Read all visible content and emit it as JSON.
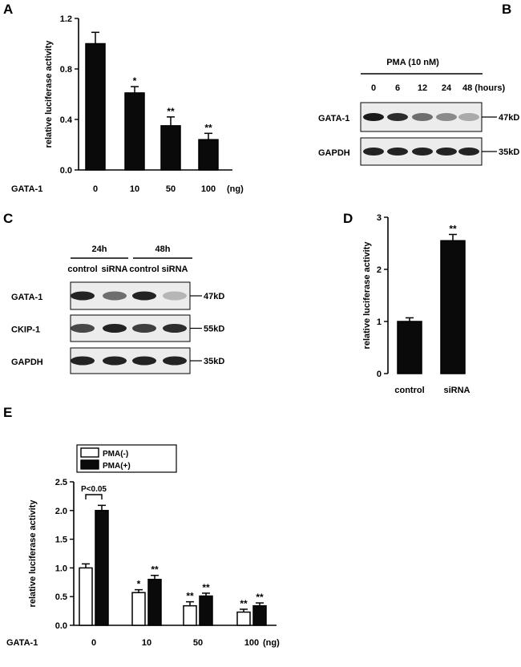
{
  "panels": {
    "A": "A",
    "B": "B",
    "C": "C",
    "D": "D",
    "E": "E"
  },
  "colors": {
    "bar_dark": "#0a0a0a",
    "bar_light": "#ffffff",
    "axis": "#000000",
    "band": "#1a1a1a"
  },
  "chart_data": [
    {
      "panel": "A",
      "type": "bar",
      "ylabel": "relative  luciferase activity",
      "xlabel_prefix": "GATA-1",
      "xunit": "(ng)",
      "categories": [
        "0",
        "10",
        "50",
        "100"
      ],
      "values": [
        1.0,
        0.61,
        0.35,
        0.24
      ],
      "errors": [
        0.09,
        0.05,
        0.07,
        0.05
      ],
      "significance": [
        "",
        "*",
        "**",
        "**"
      ],
      "ylim": [
        0,
        1.2
      ],
      "yticks": [
        "0.0",
        "0.4",
        "0.8",
        "1.2"
      ]
    },
    {
      "panel": "D",
      "type": "bar",
      "ylabel": "relative  luciferase activity",
      "categories": [
        "control",
        "siRNA"
      ],
      "values": [
        1.0,
        2.55
      ],
      "errors": [
        0.07,
        0.12
      ],
      "significance": [
        "",
        "**"
      ],
      "ylim": [
        0,
        3
      ],
      "yticks": [
        "0",
        "1",
        "2",
        "3"
      ]
    },
    {
      "panel": "E",
      "type": "bar",
      "ylabel": "relative  luciferase activity",
      "xlabel_prefix": "GATA-1",
      "xunit": "(ng)",
      "categories": [
        "0",
        "10",
        "50",
        "100"
      ],
      "series": [
        {
          "name": "PMA(-)",
          "values": [
            1.0,
            0.57,
            0.34,
            0.23
          ],
          "errors": [
            0.07,
            0.05,
            0.07,
            0.05
          ],
          "significance": [
            "",
            "*",
            "**",
            "**"
          ]
        },
        {
          "name": "PMA(+)",
          "values": [
            2.0,
            0.8,
            0.51,
            0.34
          ],
          "errors": [
            0.09,
            0.07,
            0.05,
            0.05
          ],
          "significance": [
            "",
            "**",
            "**",
            "**"
          ]
        }
      ],
      "bracket_label": "P<0.05",
      "legend_position": "top-left",
      "ylim": [
        0,
        2.5
      ],
      "yticks": [
        "0.0",
        "0.5",
        "1.0",
        "1.5",
        "2.0",
        "2.5"
      ]
    }
  ],
  "blots": {
    "B": {
      "treatment": "PMA  (10 nM)",
      "timepoints": [
        "0",
        "6",
        "12",
        "24",
        "48 (hours)"
      ],
      "rows": [
        {
          "label": "GATA-1",
          "size": "47kD",
          "intensities": [
            0.95,
            0.85,
            0.5,
            0.35,
            0.18
          ]
        },
        {
          "label": "GAPDH",
          "size": "35kD",
          "intensities": [
            0.9,
            0.9,
            0.9,
            0.9,
            0.9
          ]
        }
      ]
    },
    "C": {
      "timepoints": [
        "24h",
        "48h"
      ],
      "lanes": [
        "control",
        "siRNA",
        "control",
        "siRNA"
      ],
      "rows": [
        {
          "label": "GATA-1",
          "size": "47kD",
          "intensities": [
            0.9,
            0.5,
            0.9,
            0.12
          ]
        },
        {
          "label": "CKIP-1",
          "size": "55kD",
          "intensities": [
            0.7,
            0.9,
            0.75,
            0.85
          ]
        },
        {
          "label": "GAPDH",
          "size": "35kD",
          "intensities": [
            0.9,
            0.9,
            0.9,
            0.9
          ]
        }
      ]
    }
  }
}
